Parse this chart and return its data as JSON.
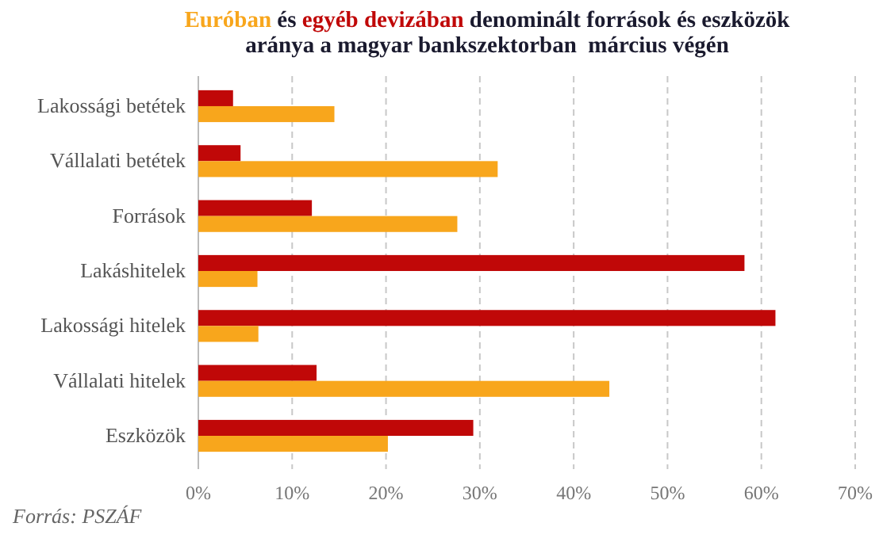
{
  "chart_data": {
    "type": "bar",
    "orientation": "horizontal",
    "title": "Euróban és egyéb devizában denominált források és eszközök\naránya a magyar bankszektorban  március végén",
    "categories": [
      "Lakossági betétek",
      "Vállalati betétek",
      "Források",
      "Lakáshitelek",
      "Lakossági hitelek",
      "Vállalati hitelek",
      "Eszközök"
    ],
    "series": [
      {
        "color": "#c00808",
        "values": [
          3.7,
          4.5,
          12.1,
          58.2,
          61.5,
          12.6,
          29.3
        ]
      },
      {
        "color": "#f8a61c",
        "values": [
          14.5,
          31.9,
          27.6,
          6.3,
          6.4,
          43.8,
          20.2
        ]
      }
    ],
    "xlim": [
      0,
      70
    ],
    "xticks": [
      {
        "value": 0,
        "label": "0%"
      },
      {
        "value": 10,
        "label": "10%"
      },
      {
        "value": 20,
        "label": "20%"
      },
      {
        "value": 30,
        "label": "30%"
      },
      {
        "value": 40,
        "label": "40%"
      },
      {
        "value": 50,
        "label": "50%"
      },
      {
        "value": 60,
        "label": "60%"
      },
      {
        "value": 70,
        "label": "70%"
      }
    ],
    "grid": "x",
    "annotations": [
      "Forrás: PSZÁF"
    ]
  }
}
